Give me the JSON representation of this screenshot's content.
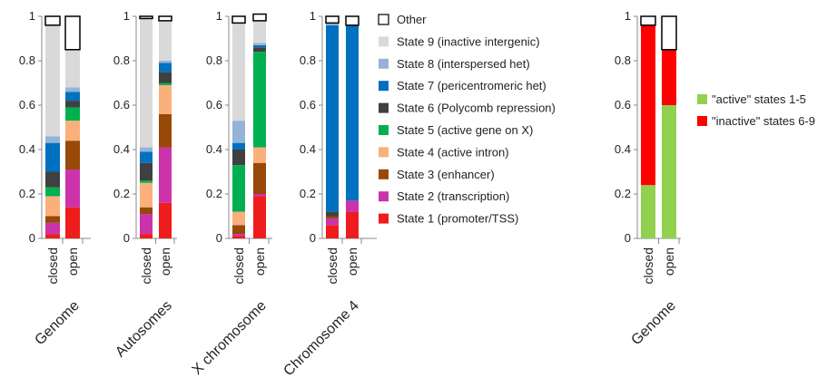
{
  "chart_data": [
    {
      "type": "bar",
      "stacked": true,
      "title": "Genome",
      "categories": [
        "closed",
        "open"
      ],
      "ylim": [
        0,
        1
      ],
      "yticks": [
        "0",
        "0.2",
        "0.4",
        "0.6",
        "0.8",
        "1"
      ],
      "series": [
        {
          "name": "State 1 (promoter/TSS)",
          "values": [
            0.02,
            0.14
          ]
        },
        {
          "name": "State 2 (transcription)",
          "values": [
            0.05,
            0.17
          ]
        },
        {
          "name": "State 3 (enhancer)",
          "values": [
            0.03,
            0.13
          ]
        },
        {
          "name": "State 4 (active intron)",
          "values": [
            0.09,
            0.09
          ]
        },
        {
          "name": "State 5 (active gene on X)",
          "values": [
            0.04,
            0.06
          ]
        },
        {
          "name": "State 6 (Polycomb repression)",
          "values": [
            0.07,
            0.03
          ]
        },
        {
          "name": "State 7 (pericentromeric het)",
          "values": [
            0.13,
            0.04
          ]
        },
        {
          "name": "State 8 (interspersed het)",
          "values": [
            0.03,
            0.02
          ]
        },
        {
          "name": "State 9 (inactive intergenic)",
          "values": [
            0.5,
            0.17
          ]
        },
        {
          "name": "Other",
          "values": [
            0.04,
            0.15
          ]
        }
      ]
    },
    {
      "type": "bar",
      "stacked": true,
      "title": "Autosomes",
      "categories": [
        "closed",
        "open"
      ],
      "ylim": [
        0,
        1
      ],
      "yticks": [
        "0",
        "0.2",
        "0.4",
        "0.6",
        "0.8",
        "1"
      ],
      "series": [
        {
          "name": "State 1 (promoter/TSS)",
          "values": [
            0.02,
            0.16
          ]
        },
        {
          "name": "State 2 (transcription)",
          "values": [
            0.09,
            0.25
          ]
        },
        {
          "name": "State 3 (enhancer)",
          "values": [
            0.03,
            0.15
          ]
        },
        {
          "name": "State 4 (active intron)",
          "values": [
            0.11,
            0.13
          ]
        },
        {
          "name": "State 5 (active gene on X)",
          "values": [
            0.01,
            0.01
          ]
        },
        {
          "name": "State 6 (Polycomb repression)",
          "values": [
            0.08,
            0.05
          ]
        },
        {
          "name": "State 7 (pericentromeric het)",
          "values": [
            0.05,
            0.04
          ]
        },
        {
          "name": "State 8 (interspersed het)",
          "values": [
            0.02,
            0.01
          ]
        },
        {
          "name": "State 9 (inactive intergenic)",
          "values": [
            0.58,
            0.18
          ]
        },
        {
          "name": "Other",
          "values": [
            0.01,
            0.02
          ]
        }
      ]
    },
    {
      "type": "bar",
      "stacked": true,
      "title": "X chromosome",
      "categories": [
        "closed",
        "open"
      ],
      "ylim": [
        0,
        1
      ],
      "yticks": [
        "0",
        "0.2",
        "0.4",
        "0.6",
        "0.8",
        "1"
      ],
      "series": [
        {
          "name": "State 1 (promoter/TSS)",
          "values": [
            0.01,
            0.19
          ]
        },
        {
          "name": "State 2 (transcription)",
          "values": [
            0.01,
            0.01
          ]
        },
        {
          "name": "State 3 (enhancer)",
          "values": [
            0.04,
            0.14
          ]
        },
        {
          "name": "State 4 (active intron)",
          "values": [
            0.06,
            0.07
          ]
        },
        {
          "name": "State 5 (active gene on X)",
          "values": [
            0.21,
            0.43
          ]
        },
        {
          "name": "State 6 (Polycomb repression)",
          "values": [
            0.07,
            0.02
          ]
        },
        {
          "name": "State 7 (pericentromeric het)",
          "values": [
            0.03,
            0.01
          ]
        },
        {
          "name": "State 8 (interspersed het)",
          "values": [
            0.1,
            0.01
          ]
        },
        {
          "name": "State 9 (inactive intergenic)",
          "values": [
            0.44,
            0.1
          ]
        },
        {
          "name": "Other",
          "values": [
            0.03,
            0.03
          ]
        }
      ]
    },
    {
      "type": "bar",
      "stacked": true,
      "title": "Chromosome 4",
      "categories": [
        "closed",
        "open"
      ],
      "ylim": [
        0,
        1
      ],
      "yticks": [
        "0",
        "0.2",
        "0.4",
        "0.6",
        "0.8",
        "1"
      ],
      "series": [
        {
          "name": "State 1 (promoter/TSS)",
          "values": [
            0.06,
            0.12
          ]
        },
        {
          "name": "State 2 (transcription)",
          "values": [
            0.03,
            0.05
          ]
        },
        {
          "name": "State 3 (enhancer)",
          "values": [
            0.01,
            0.0
          ]
        },
        {
          "name": "State 4 (active intron)",
          "values": [
            0.0,
            0.0
          ]
        },
        {
          "name": "State 5 (active gene on X)",
          "values": [
            0.0,
            0.0
          ]
        },
        {
          "name": "State 6 (Polycomb repression)",
          "values": [
            0.02,
            0.0
          ]
        },
        {
          "name": "State 7 (pericentromeric het)",
          "values": [
            0.84,
            0.79
          ]
        },
        {
          "name": "State 8 (interspersed het)",
          "values": [
            0.01,
            0.0
          ]
        },
        {
          "name": "State 9 (inactive intergenic)",
          "values": [
            0.0,
            0.0
          ]
        },
        {
          "name": "Other",
          "values": [
            0.03,
            0.04
          ]
        }
      ]
    },
    {
      "type": "bar",
      "stacked": true,
      "title": "Genome",
      "categories": [
        "closed",
        "open"
      ],
      "ylim": [
        0,
        1
      ],
      "yticks": [
        "0",
        "0.2",
        "0.4",
        "0.6",
        "0.8",
        "1"
      ],
      "series": [
        {
          "name": "\"active\" states 1-5",
          "values": [
            0.24,
            0.6
          ]
        },
        {
          "name": "\"inactive\" states 6-9",
          "values": [
            0.72,
            0.25
          ]
        },
        {
          "name": "Other",
          "values": [
            0.04,
            0.15
          ]
        }
      ]
    }
  ],
  "legend_states": [
    {
      "label": "Other",
      "color": "#ffffff"
    },
    {
      "label": "State 9 (inactive intergenic)",
      "color": "#d9d9d9"
    },
    {
      "label": "State 8 (interspersed het)",
      "color": "#95b3d7"
    },
    {
      "label": "State 7 (pericentromeric het)",
      "color": "#0070c0"
    },
    {
      "label": "State 6 (Polycomb repression)",
      "color": "#404040"
    },
    {
      "label": "State 5 (active gene on X)",
      "color": "#00b050"
    },
    {
      "label": "State 4 (active intron)",
      "color": "#fab07a"
    },
    {
      "label": "State 3 (enhancer)",
      "color": "#984807"
    },
    {
      "label": "State 2 (transcription)",
      "color": "#cc33aa"
    },
    {
      "label": "State 1 (promoter/TSS)",
      "color": "#ee1c1c"
    }
  ],
  "legend_summary": [
    {
      "label": "\"active\" states 1-5",
      "color": "#92d050"
    },
    {
      "label": "\"inactive\" states 6-9",
      "color": "#ff0000"
    }
  ]
}
